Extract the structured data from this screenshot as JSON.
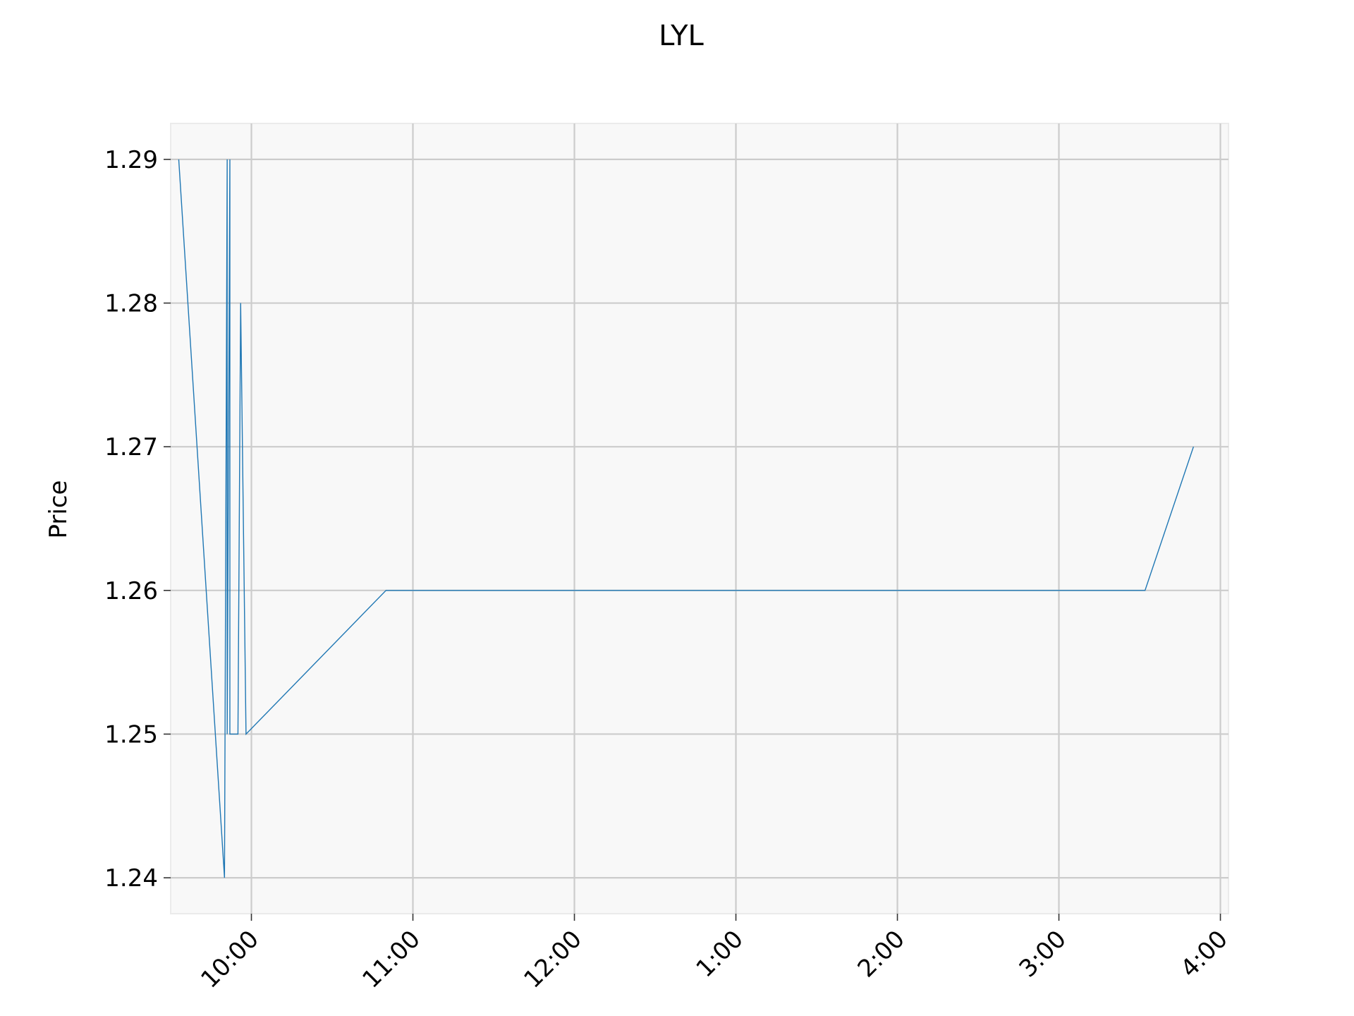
{
  "chart_data": {
    "type": "line",
    "title": "LYL",
    "xlabel": "",
    "ylabel": "Price",
    "grid": true,
    "legend": "none",
    "colors": {
      "line": "#1f77b4",
      "grid": "#cccccc",
      "background": "#f8f8f8"
    },
    "x_ticks": [
      {
        "time": "10:00",
        "label": "10:00"
      },
      {
        "time": "11:00",
        "label": "11:00"
      },
      {
        "time": "12:00",
        "label": "12:00"
      },
      {
        "time": "13:00",
        "label": "1:00"
      },
      {
        "time": "14:00",
        "label": "2:00"
      },
      {
        "time": "15:00",
        "label": "3:00"
      },
      {
        "time": "16:00",
        "label": "4:00"
      }
    ],
    "y_ticks": [
      1.24,
      1.25,
      1.26,
      1.27,
      1.28,
      1.29
    ],
    "xlim": [
      "09:30",
      "16:03"
    ],
    "ylim": [
      1.2375,
      1.2925
    ],
    "series": [
      {
        "x": [
          "09:33",
          "09:50",
          "09:51",
          "09:51",
          "09:52",
          "09:52",
          "09:55",
          "09:56",
          "09:58",
          "10:50",
          "15:32",
          "15:50"
        ],
        "y": [
          1.29,
          1.24,
          1.29,
          1.25,
          1.29,
          1.25,
          1.25,
          1.28,
          1.25,
          1.26,
          1.26,
          1.27
        ]
      }
    ]
  }
}
